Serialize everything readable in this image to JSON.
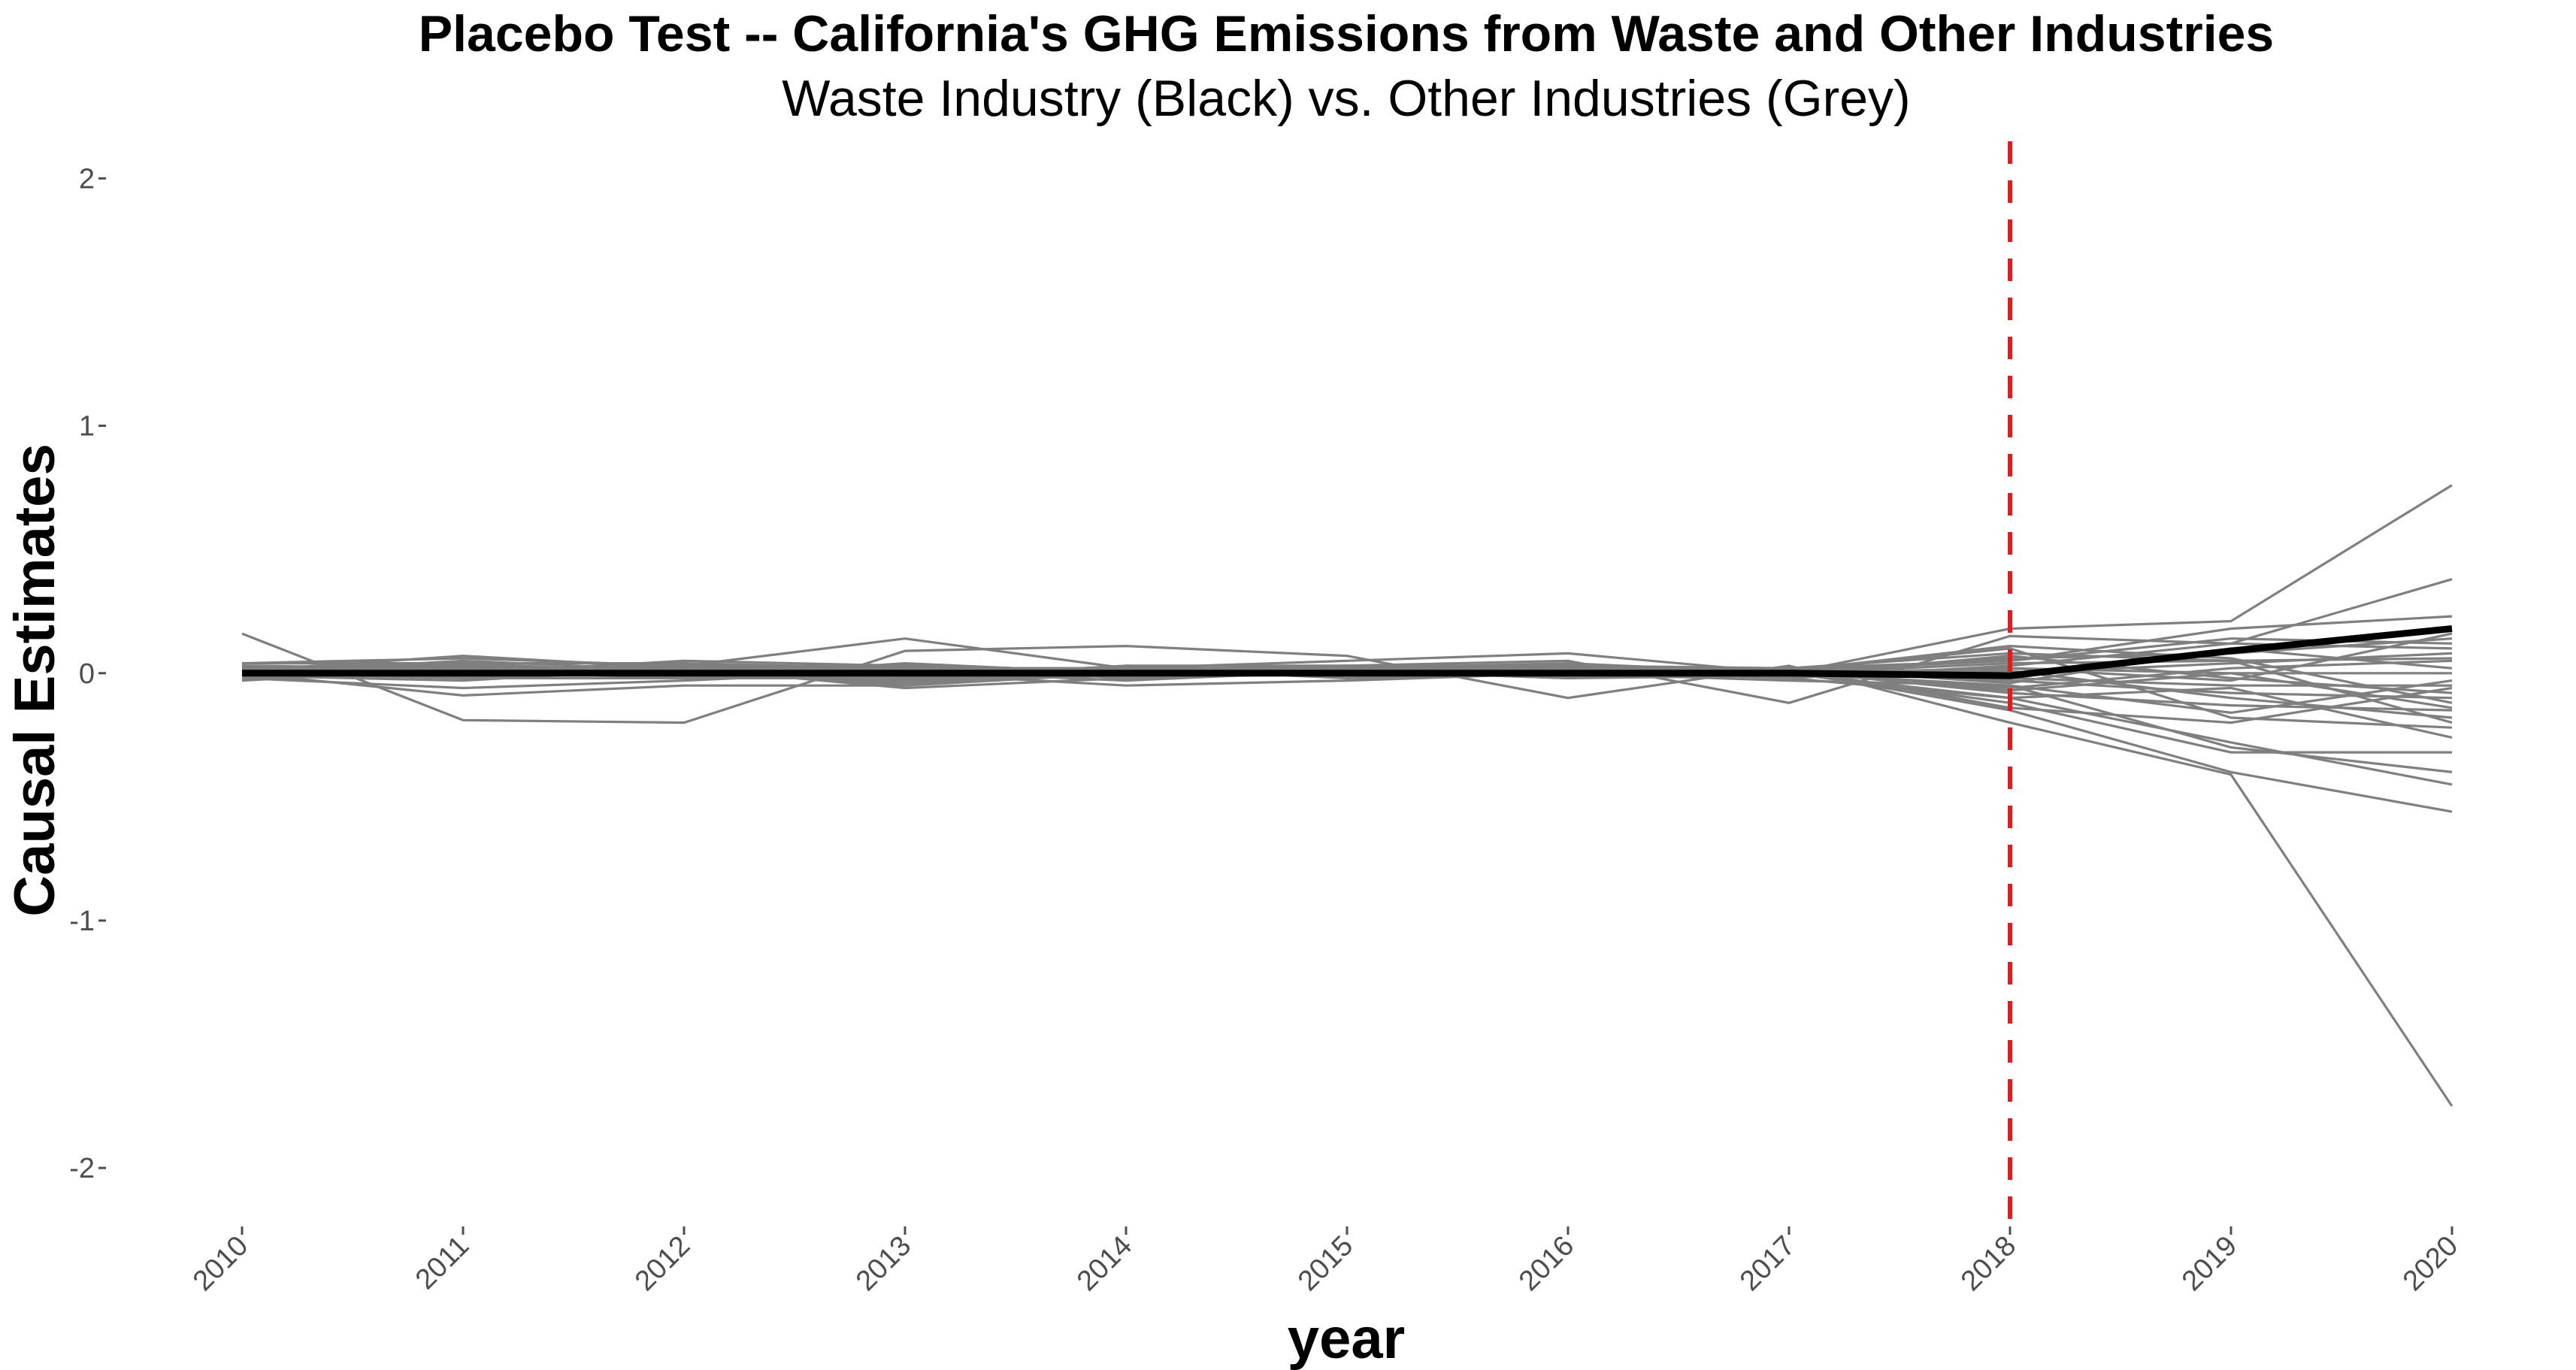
{
  "chart_data": {
    "type": "line",
    "title": "Placebo Test -- California's GHG Emissions from Waste and Other Industries",
    "subtitle": "Waste Industry (Black) vs. Other Industries (Grey)",
    "xlabel": "year",
    "ylabel": "Causal Estimates",
    "x": [
      2010,
      2011,
      2012,
      2013,
      2014,
      2015,
      2016,
      2017,
      2018,
      2019,
      2020
    ],
    "ylim": [
      -2.2,
      2.15
    ],
    "yticks": [
      -2,
      -1,
      0,
      1,
      2
    ],
    "yticklabels": [
      "-2",
      "-1",
      "0",
      "1",
      "2"
    ],
    "xticklabels": [
      "2010",
      "2011",
      "2012",
      "2013",
      "2014",
      "2015",
      "2016",
      "2017",
      "2018",
      "2019",
      "2020"
    ],
    "grid": false,
    "vline": {
      "x": 2018,
      "color": "#e41a1c",
      "style": "dashed"
    },
    "treated_color": "#000000",
    "placebo_color": "#7f7f7f",
    "treated": {
      "values": [
        0.0,
        0.0,
        0.0,
        0.0,
        0.0,
        0.0,
        0.0,
        0.0,
        -0.01,
        0.09,
        0.18
      ]
    },
    "placebos": [
      [
        0.16,
        -0.19,
        -0.2,
        0.09,
        0.11,
        0.07,
        -0.1,
        0.03,
        -0.2,
        -0.41,
        -1.75
      ],
      [
        0.04,
        0.06,
        0.03,
        0.14,
        0.02,
        0.05,
        0.08,
        0.0,
        0.18,
        0.21,
        0.76
      ],
      [
        0.02,
        0.0,
        0.05,
        0.03,
        0.01,
        0.03,
        0.05,
        -0.12,
        0.15,
        0.12,
        0.38
      ],
      [
        -0.02,
        -0.06,
        -0.03,
        0.01,
        -0.03,
        0.01,
        -0.02,
        0.01,
        -0.15,
        -0.4,
        -0.56
      ],
      [
        0.0,
        -0.09,
        -0.05,
        -0.05,
        0.03,
        0.0,
        0.03,
        0.0,
        -0.1,
        -0.28,
        -0.45
      ],
      [
        0.02,
        0.03,
        0.01,
        0.02,
        0.02,
        0.01,
        0.01,
        0.02,
        0.05,
        0.18,
        0.23
      ],
      [
        0.03,
        -0.02,
        -0.02,
        0.04,
        0.0,
        0.01,
        0.0,
        -0.03,
        -0.05,
        -0.3,
        -0.4
      ],
      [
        0.01,
        0.07,
        0.02,
        -0.05,
        0.0,
        0.02,
        0.04,
        0.0,
        -0.12,
        -0.32,
        -0.32
      ],
      [
        -0.03,
        0.02,
        0.0,
        0.0,
        -0.05,
        -0.03,
        0.0,
        0.02,
        0.08,
        0.05,
        -0.2
      ],
      [
        0.04,
        0.04,
        0.04,
        -0.02,
        0.03,
        0.03,
        0.02,
        0.01,
        0.1,
        -0.18,
        -0.22
      ],
      [
        0.0,
        0.01,
        -0.01,
        -0.03,
        -0.01,
        0.0,
        0.02,
        -0.02,
        0.03,
        0.12,
        0.1
      ],
      [
        0.02,
        0.0,
        0.03,
        0.01,
        0.02,
        0.02,
        -0.01,
        0.01,
        -0.06,
        0.02,
        0.05
      ],
      [
        -0.01,
        -0.03,
        0.02,
        -0.06,
        -0.02,
        0.0,
        0.01,
        0.0,
        0.06,
        0.08,
        0.14
      ],
      [
        0.03,
        0.02,
        -0.02,
        0.03,
        0.01,
        0.03,
        0.03,
        0.02,
        -0.03,
        -0.08,
        -0.1
      ],
      [
        0.0,
        0.05,
        0.01,
        -0.04,
        0.02,
        -0.02,
        0.0,
        -0.01,
        0.02,
        0.0,
        0.0
      ],
      [
        0.01,
        -0.01,
        0.04,
        0.02,
        0.0,
        0.01,
        0.03,
        0.01,
        -0.08,
        -0.13,
        -0.15
      ],
      [
        0.02,
        0.03,
        0.0,
        -0.01,
        0.01,
        0.02,
        0.01,
        0.0,
        0.04,
        0.05,
        0.06
      ],
      [
        -0.02,
        0.01,
        0.02,
        0.0,
        -0.01,
        0.0,
        0.02,
        0.01,
        -0.02,
        -0.05,
        -0.05
      ],
      [
        0.03,
        -0.02,
        0.01,
        0.02,
        0.02,
        0.01,
        -0.02,
        -0.01,
        0.07,
        -0.02,
        -0.08
      ],
      [
        0.01,
        0.02,
        -0.01,
        -0.02,
        0.0,
        0.02,
        0.02,
        0.02,
        -0.04,
        0.1,
        0.02
      ],
      [
        0.0,
        0.0,
        0.02,
        0.01,
        0.01,
        -0.01,
        0.0,
        0.0,
        0.01,
        -0.1,
        -0.18
      ],
      [
        0.02,
        0.04,
        0.0,
        -0.03,
        0.02,
        0.01,
        0.03,
        0.01,
        0.05,
        0.14,
        0.12
      ],
      [
        0.01,
        -0.01,
        0.03,
        0.03,
        -0.02,
        0.02,
        0.01,
        -0.02,
        -0.1,
        -0.06,
        -0.26
      ],
      [
        -0.01,
        0.01,
        0.0,
        -0.01,
        0.0,
        0.0,
        0.02,
        0.01,
        0.0,
        0.04,
        0.08
      ],
      [
        0.02,
        0.02,
        0.01,
        0.0,
        0.01,
        0.01,
        0.0,
        0.0,
        -0.05,
        -0.16,
        -0.03
      ],
      [
        0.0,
        -0.02,
        0.02,
        0.02,
        0.01,
        0.03,
        0.02,
        0.01,
        0.11,
        0.06,
        -0.12
      ],
      [
        0.03,
        0.01,
        -0.02,
        -0.02,
        0.02,
        0.0,
        0.01,
        0.02,
        -0.14,
        -0.2,
        -0.06
      ],
      [
        0.01,
        0.03,
        0.01,
        0.01,
        0.0,
        0.02,
        0.03,
        0.0,
        0.02,
        -0.03,
        0.16
      ],
      [
        0.02,
        0.0,
        0.0,
        0.03,
        0.01,
        0.01,
        0.0,
        0.01,
        -0.07,
        0.0,
        -0.14
      ]
    ]
  }
}
